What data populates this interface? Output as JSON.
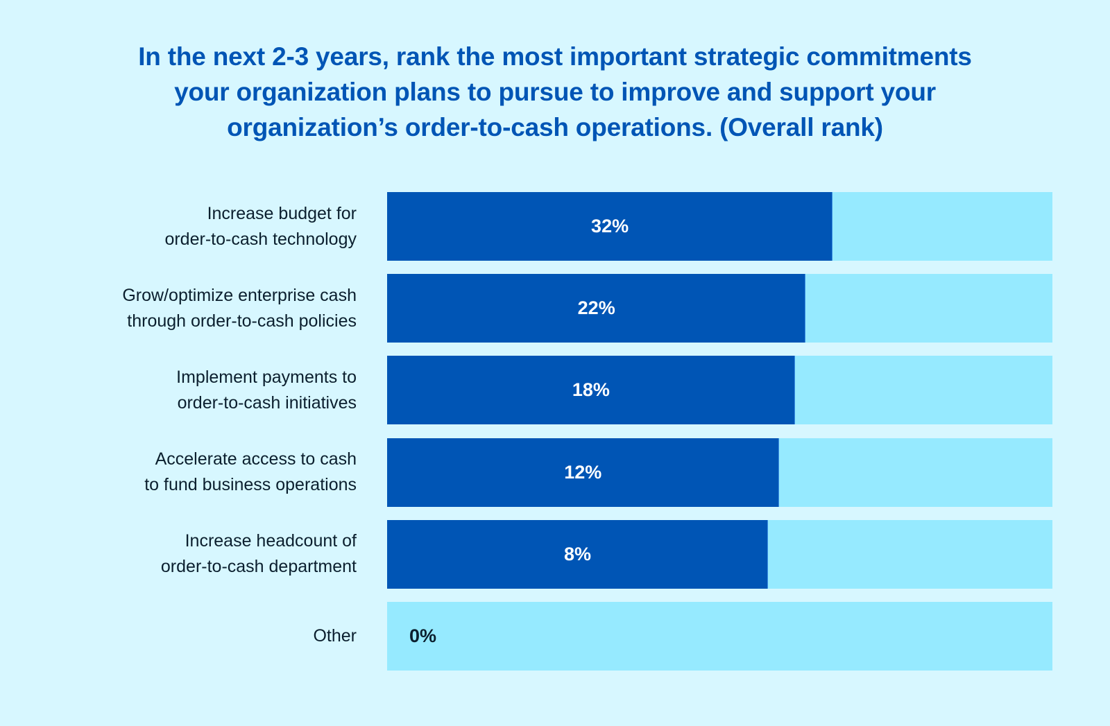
{
  "title_lines": [
    "In the next 2-3 years, rank the most important strategic commitments",
    "your organization plans to pursue to improve and support your",
    "organization’s order-to-cash operations. (Overall rank)"
  ],
  "colors": {
    "background": "#d7f7ff",
    "bar_fill": "#0055b5",
    "bar_track": "#96eaff",
    "title": "#0055b5",
    "label_text": "#0b1f2e",
    "value_text_on_bar": "#ffffff"
  },
  "chart_data": {
    "type": "bar",
    "orientation": "horizontal",
    "title": "In the next 2-3 years, rank the most important strategic commitments your organization plans to pursue to improve and support your organization’s order-to-cash operations. (Overall rank)",
    "xlabel": "",
    "ylabel": "",
    "grid": false,
    "legend": "none",
    "unit": "%",
    "categories": [
      [
        "Increase budget for",
        "order-to-cash technology"
      ],
      [
        "Grow/optimize enterprise cash",
        "through order-to-cash policies"
      ],
      [
        "Implement payments to",
        "order-to-cash initiatives"
      ],
      [
        "Accelerate access to cash",
        "to fund business operations"
      ],
      [
        "Increase headcount of",
        "order-to-cash department"
      ],
      [
        "Other"
      ]
    ],
    "values": [
      32,
      22,
      18,
      12,
      8,
      0
    ],
    "value_labels": [
      "32%",
      "22%",
      "18%",
      "12%",
      "8%",
      "0%"
    ]
  }
}
